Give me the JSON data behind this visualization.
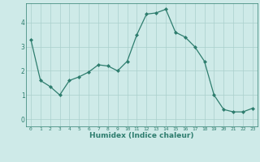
{
  "xlabel": "Humidex (Indice chaleur)",
  "x": [
    0,
    1,
    2,
    3,
    4,
    5,
    6,
    7,
    8,
    9,
    10,
    11,
    12,
    13,
    14,
    15,
    16,
    17,
    18,
    19,
    20,
    21,
    22,
    23
  ],
  "y": [
    3.3,
    1.6,
    1.35,
    1.0,
    1.6,
    1.75,
    1.95,
    2.25,
    2.2,
    2.0,
    2.4,
    3.5,
    4.35,
    4.4,
    4.55,
    3.6,
    3.4,
    3.0,
    2.4,
    1.0,
    0.4,
    0.3,
    0.3,
    0.45
  ],
  "line_color": "#2e7d6e",
  "marker": "D",
  "marker_size": 2.0,
  "bg_color": "#ceeae8",
  "grid_color": "#aacfcc",
  "tick_color": "#2e7d6e",
  "label_color": "#2e7d6e",
  "ylim": [
    -0.3,
    4.8
  ],
  "yticks": [
    0,
    1,
    2,
    3,
    4
  ],
  "xlim": [
    -0.5,
    23.5
  ],
  "xticks": [
    0,
    1,
    2,
    3,
    4,
    5,
    6,
    7,
    8,
    9,
    10,
    11,
    12,
    13,
    14,
    15,
    16,
    17,
    18,
    19,
    20,
    21,
    22,
    23
  ]
}
